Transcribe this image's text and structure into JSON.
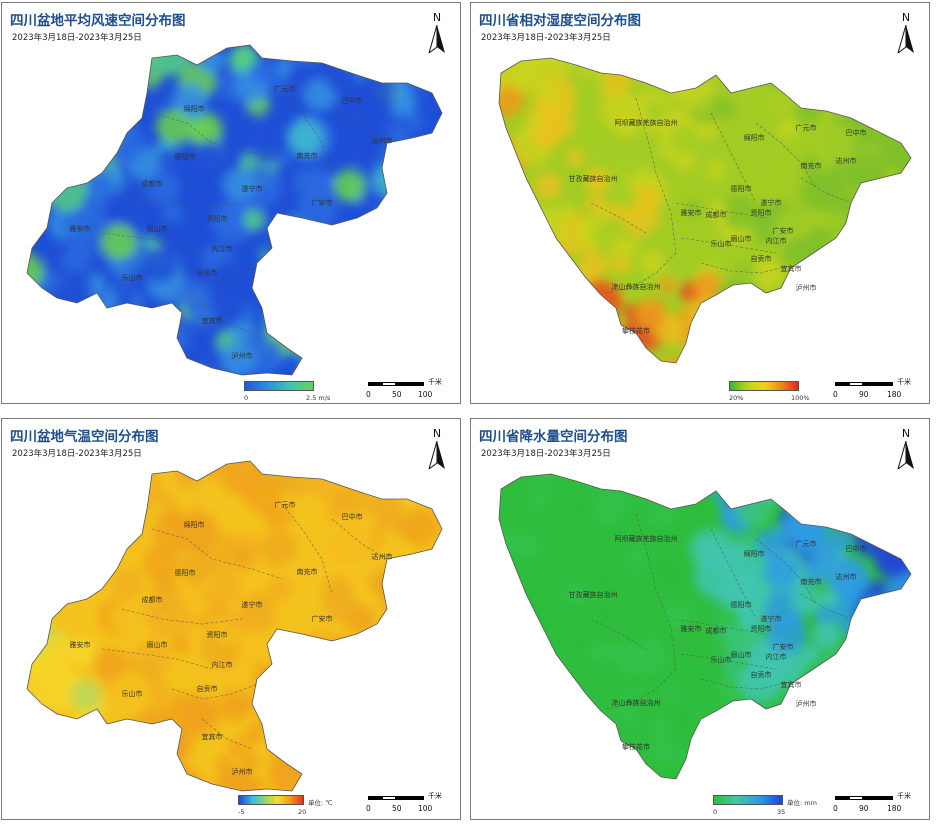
{
  "panels": [
    {
      "title": "四川盆地平均风速空间分布图",
      "subtitle": "2023年3月18日-2023年3月25日",
      "north": "N",
      "legend": {
        "min": "0",
        "max": "2.5 m/s",
        "colors": [
          "#1f5bd9",
          "#2d8fe0",
          "#3ec7b0",
          "#5fd35a"
        ]
      },
      "scale": {
        "ticks": [
          "0",
          "50",
          "100"
        ],
        "unit": "千米"
      },
      "cities": [
        "绵阳市",
        "巴中市",
        "广元市",
        "德阳市",
        "南充市",
        "达州市",
        "成都市",
        "遂宁市",
        "广安市",
        "资阳市",
        "雅安市",
        "眉山市",
        "内江市",
        "乐山市",
        "自贡市",
        "宜宾市",
        "泸州市"
      ],
      "palette": [
        "#1e4fd6",
        "#2a6be0",
        "#3591e3",
        "#40b7d0",
        "#55cf86",
        "#6ad44e"
      ]
    },
    {
      "title": "四川省相对湿度空间分布图",
      "subtitle": "2023年3月18日-2023年3月25日",
      "north": "N",
      "legend": {
        "min": "20%",
        "max": "100%",
        "colors": [
          "#3fb52a",
          "#b6d421",
          "#f3d11c",
          "#f08a1a",
          "#e0261d"
        ]
      },
      "scale": {
        "ticks": [
          "0",
          "90",
          "180"
        ],
        "unit": "千米"
      },
      "cities": [
        "阿坝藏族羌族自治州",
        "甘孜藏族自治州",
        "凉山彝族自治州",
        "攀枝花市",
        "广元市",
        "巴中市",
        "绵阳市",
        "南充市",
        "达州市",
        "德阳市",
        "成都市",
        "遂宁市",
        "广安市",
        "雅安市",
        "资阳市",
        "眉山市",
        "内江市",
        "乐山市",
        "自贡市",
        "宜宾市",
        "泸州市"
      ],
      "palette": [
        "#7fbf2a",
        "#a3cc24",
        "#c9d41f",
        "#e8c21d",
        "#ee9a1b",
        "#e4521c"
      ]
    },
    {
      "title": "四川盆地气温空间分布图",
      "subtitle": "2023年3月18日-2023年3月25日",
      "north": "N",
      "legend": {
        "min": "-5",
        "max": "20",
        "unit": "单位: ℃",
        "colors": [
          "#2348d8",
          "#38b6e6",
          "#8fd46a",
          "#f2df2a",
          "#f29a1c",
          "#e6311b"
        ]
      },
      "scale": {
        "ticks": [
          "0",
          "50",
          "100"
        ],
        "unit": "千米"
      },
      "cities": [
        "绵阳市",
        "巴中市",
        "广元市",
        "德阳市",
        "南充市",
        "达州市",
        "成都市",
        "遂宁市",
        "广安市",
        "资阳市",
        "雅安市",
        "眉山市",
        "内江市",
        "乐山市",
        "自贡市",
        "宜宾市",
        "泸州市"
      ],
      "palette": [
        "#f4c21d",
        "#f2b21c",
        "#f0a31b",
        "#eead1c",
        "#f6d628",
        "#b8d85a"
      ]
    },
    {
      "title": "四川省降水量空间分布图",
      "subtitle": "2023年3月18日-2023年3月25日",
      "north": "N",
      "legend": {
        "min": "0",
        "max": "35",
        "unit": "单位: mm",
        "colors": [
          "#2ebd3c",
          "#3ec8a6",
          "#2e9be3",
          "#1f42d8"
        ]
      },
      "scale": {
        "ticks": [
          "0",
          "90",
          "180"
        ],
        "unit": "千米"
      },
      "cities": [
        "阿坝藏族羌族自治州",
        "甘孜藏族自治州",
        "凉山彝族自治州",
        "攀枝花市",
        "广元市",
        "巴中市",
        "绵阳市",
        "南充市",
        "达州市",
        "德阳市",
        "成都市",
        "遂宁市",
        "广安市",
        "雅安市",
        "资阳市",
        "眉山市",
        "内江市",
        "乐山市",
        "自贡市",
        "宜宾市",
        "泸州市"
      ],
      "palette": [
        "#2fbd3c",
        "#33c24a",
        "#3ac67a",
        "#3fc5b0",
        "#2f9ce2",
        "#2148d6"
      ]
    }
  ]
}
